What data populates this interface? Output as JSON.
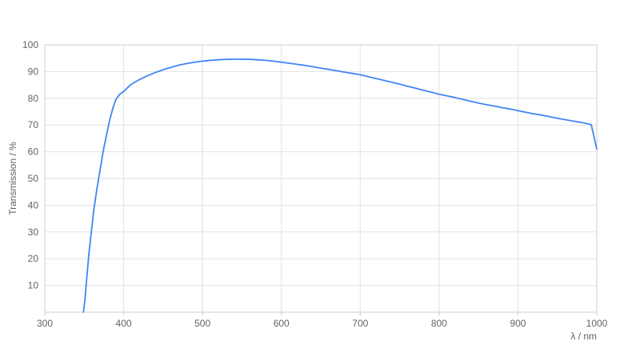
{
  "chart_data": {
    "type": "line",
    "title": "",
    "xlabel": "λ / nm",
    "ylabel": "Transmission / %",
    "xlim": [
      300,
      1000
    ],
    "ylim": [
      0,
      100
    ],
    "x_ticks": [
      300,
      400,
      500,
      600,
      700,
      800,
      900,
      1000
    ],
    "y_ticks": [
      10,
      20,
      30,
      40,
      50,
      60,
      70,
      80,
      90,
      100
    ],
    "grid": true,
    "legend_position": "none",
    "series": [
      {
        "name": "Transmission",
        "points": [
          [
            349,
            0
          ],
          [
            351,
            5
          ],
          [
            353,
            12
          ],
          [
            356,
            22
          ],
          [
            359,
            30
          ],
          [
            362,
            38
          ],
          [
            366,
            46
          ],
          [
            370,
            53
          ],
          [
            374,
            60
          ],
          [
            378,
            66
          ],
          [
            382,
            71.5
          ],
          [
            386,
            76
          ],
          [
            390,
            79.5
          ],
          [
            395,
            81.5
          ],
          [
            400,
            82.5
          ],
          [
            405,
            84
          ],
          [
            410,
            85.3
          ],
          [
            420,
            87
          ],
          [
            430,
            88.4
          ],
          [
            440,
            89.6
          ],
          [
            450,
            90.7
          ],
          [
            460,
            91.6
          ],
          [
            470,
            92.4
          ],
          [
            480,
            93
          ],
          [
            490,
            93.5
          ],
          [
            500,
            93.9
          ],
          [
            510,
            94.2
          ],
          [
            520,
            94.4
          ],
          [
            530,
            94.55
          ],
          [
            540,
            94.6
          ],
          [
            550,
            94.6
          ],
          [
            560,
            94.55
          ],
          [
            570,
            94.4
          ],
          [
            580,
            94.2
          ],
          [
            590,
            93.9
          ],
          [
            600,
            93.5
          ],
          [
            610,
            93.1
          ],
          [
            620,
            92.7
          ],
          [
            630,
            92.3
          ],
          [
            640,
            91.8
          ],
          [
            650,
            91.3
          ],
          [
            660,
            90.8
          ],
          [
            670,
            90.3
          ],
          [
            680,
            89.8
          ],
          [
            690,
            89.3
          ],
          [
            700,
            88.8
          ],
          [
            710,
            88.1
          ],
          [
            720,
            87.4
          ],
          [
            730,
            86.7
          ],
          [
            740,
            86.0
          ],
          [
            750,
            85.3
          ],
          [
            760,
            84.5
          ],
          [
            770,
            83.8
          ],
          [
            780,
            83.0
          ],
          [
            790,
            82.3
          ],
          [
            800,
            81.5
          ],
          [
            810,
            80.9
          ],
          [
            820,
            80.3
          ],
          [
            830,
            79.6
          ],
          [
            840,
            78.9
          ],
          [
            850,
            78.2
          ],
          [
            860,
            77.6
          ],
          [
            870,
            77.1
          ],
          [
            880,
            76.5
          ],
          [
            890,
            76.0
          ],
          [
            900,
            75.4
          ],
          [
            910,
            74.8
          ],
          [
            920,
            74.2
          ],
          [
            930,
            73.7
          ],
          [
            940,
            73.1
          ],
          [
            950,
            72.5
          ],
          [
            960,
            72.0
          ],
          [
            970,
            71.5
          ],
          [
            980,
            71.0
          ],
          [
            988,
            70.5
          ],
          [
            993,
            70.1
          ],
          [
            1000,
            61
          ]
        ]
      }
    ]
  },
  "colors": {
    "line": "#4285f4",
    "grid": "#e2e2e2",
    "border": "#cccccc",
    "tick": "#cccccc",
    "tick_text": "#646464",
    "axis_title": "#5f5f5f",
    "background": "#ffffff"
  }
}
